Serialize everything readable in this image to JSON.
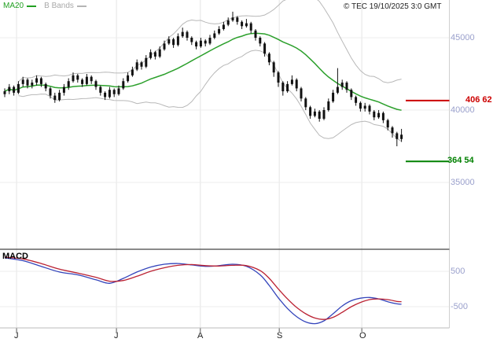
{
  "header": {
    "legend": [
      {
        "label": "MA20",
        "color": "#22a022"
      },
      {
        "label": "B Bands",
        "color": "#a9a9a9"
      }
    ],
    "copyright": "© TEC 19/10/2025 3:0 GMT"
  },
  "price_axis": [
    {
      "text": "45000",
      "value": 45000
    },
    {
      "text": "40000",
      "value": 40000
    },
    {
      "text": "35000",
      "value": 35000
    }
  ],
  "macd_axis": [
    {
      "text": "500",
      "value": 500
    },
    {
      "text": "-500",
      "value": -500
    }
  ],
  "x_axis": [
    {
      "label": "J"
    },
    {
      "label": "J"
    },
    {
      "label": "A"
    },
    {
      "label": "S"
    },
    {
      "label": "O"
    }
  ],
  "levels": [
    {
      "label": "406 62",
      "value": 40662,
      "color": "#cc0000"
    },
    {
      "label": "364 54",
      "value": 36454,
      "color": "#008000"
    }
  ],
  "macd_label": "MACD",
  "chart_data": {
    "type": "candlestick",
    "title": "",
    "panels": [
      "price",
      "macd"
    ],
    "price_ylim": [
      34800,
      47400
    ],
    "macd_ylim": [
      -1100,
      1100
    ],
    "price_ticks": [
      45000,
      40000,
      35000
    ],
    "macd_ticks": [
      500,
      -500
    ],
    "grid": true,
    "month_index": [
      2.6,
      24.5,
      42.9,
      60.2,
      78.3
    ],
    "ma_window": 20,
    "bollinger_mult": 2,
    "overlays": [
      "MA20",
      "Bollinger Bands",
      "level 40662 resistance",
      "level 36454 support"
    ],
    "ohlc": [
      [
        41100,
        41500,
        40900,
        41300
      ],
      [
        41300,
        41800,
        41100,
        41600
      ],
      [
        41600,
        41700,
        41000,
        41200
      ],
      [
        41200,
        42000,
        41100,
        41800
      ],
      [
        41800,
        42300,
        41600,
        42100
      ],
      [
        42100,
        42200,
        41500,
        41700
      ],
      [
        41700,
        42100,
        41500,
        41900
      ],
      [
        41900,
        42400,
        41700,
        42200
      ],
      [
        42200,
        42300,
        41600,
        41800
      ],
      [
        41800,
        41900,
        41300,
        41500
      ],
      [
        41500,
        41600,
        40800,
        41000
      ],
      [
        41000,
        41200,
        40500,
        40700
      ],
      [
        40700,
        41400,
        40600,
        41200
      ],
      [
        41200,
        41800,
        41000,
        41600
      ],
      [
        41600,
        42200,
        41400,
        42000
      ],
      [
        42000,
        42600,
        41900,
        42400
      ],
      [
        42400,
        42500,
        41900,
        42100
      ],
      [
        42100,
        42200,
        41600,
        41800
      ],
      [
        41800,
        42500,
        41700,
        42300
      ],
      [
        42300,
        42400,
        41800,
        42000
      ],
      [
        42000,
        42100,
        41400,
        41600
      ],
      [
        41600,
        41700,
        41000,
        41200
      ],
      [
        41200,
        41300,
        40700,
        40900
      ],
      [
        40900,
        41600,
        40800,
        41400
      ],
      [
        41400,
        41500,
        40900,
        41100
      ],
      [
        41100,
        41700,
        41000,
        41500
      ],
      [
        41500,
        42200,
        41400,
        42000
      ],
      [
        42000,
        42600,
        41900,
        42400
      ],
      [
        42400,
        43000,
        42300,
        42800
      ],
      [
        42800,
        43500,
        42700,
        43300
      ],
      [
        43300,
        43400,
        42800,
        43000
      ],
      [
        43000,
        43800,
        42900,
        43600
      ],
      [
        43600,
        44200,
        43500,
        44000
      ],
      [
        44000,
        44100,
        43500,
        43700
      ],
      [
        43700,
        44400,
        43600,
        44200
      ],
      [
        44200,
        44800,
        44100,
        44600
      ],
      [
        44600,
        45100,
        44500,
        44900
      ],
      [
        44900,
        45000,
        44300,
        44500
      ],
      [
        44500,
        45300,
        44400,
        45100
      ],
      [
        45100,
        45700,
        45000,
        45400
      ],
      [
        45400,
        45500,
        44800,
        45000
      ],
      [
        45000,
        45100,
        44500,
        44700
      ],
      [
        44700,
        44800,
        44200,
        44400
      ],
      [
        44400,
        45000,
        44300,
        44800
      ],
      [
        44800,
        44900,
        44400,
        44600
      ],
      [
        44600,
        45200,
        44500,
        45000
      ],
      [
        45000,
        45500,
        44900,
        45300
      ],
      [
        45300,
        45800,
        45200,
        45600
      ],
      [
        45600,
        46100,
        45500,
        45900
      ],
      [
        45900,
        46400,
        45800,
        46200
      ],
      [
        46200,
        46800,
        46100,
        46400
      ],
      [
        46400,
        46500,
        45900,
        46100
      ],
      [
        46100,
        46200,
        45600,
        45800
      ],
      [
        45800,
        46300,
        45700,
        46000
      ],
      [
        46000,
        46100,
        45300,
        45500
      ],
      [
        45500,
        45600,
        44800,
        45000
      ],
      [
        45000,
        45100,
        44400,
        44600
      ],
      [
        44600,
        44700,
        43700,
        43900
      ],
      [
        43900,
        44000,
        43100,
        43300
      ],
      [
        43300,
        43400,
        42300,
        42600
      ],
      [
        42600,
        42700,
        41600,
        41900
      ],
      [
        41900,
        42000,
        41000,
        41300
      ],
      [
        41300,
        42000,
        41200,
        41800
      ],
      [
        41800,
        42400,
        41700,
        42100
      ],
      [
        42100,
        42200,
        41300,
        41500
      ],
      [
        41500,
        41600,
        40600,
        40800
      ],
      [
        40800,
        40900,
        40000,
        40200
      ],
      [
        40200,
        40300,
        39400,
        39600
      ],
      [
        39600,
        40100,
        39500,
        39900
      ],
      [
        39900,
        40000,
        39200,
        39400
      ],
      [
        39400,
        40200,
        39300,
        40000
      ],
      [
        40000,
        40800,
        39900,
        40600
      ],
      [
        40600,
        41400,
        40500,
        41200
      ],
      [
        41200,
        42900,
        41100,
        41600
      ],
      [
        41600,
        42100,
        41400,
        41900
      ],
      [
        41900,
        42000,
        41200,
        41400
      ],
      [
        41400,
        41500,
        40700,
        40900
      ],
      [
        40900,
        41000,
        40300,
        40500
      ],
      [
        40500,
        40600,
        39900,
        40100
      ],
      [
        40100,
        40500,
        39900,
        40300
      ],
      [
        40300,
        40400,
        39700,
        39900
      ],
      [
        39900,
        40000,
        39300,
        39500
      ],
      [
        39500,
        40000,
        39400,
        39800
      ],
      [
        39800,
        39900,
        39100,
        39300
      ],
      [
        39300,
        39400,
        38600,
        38800
      ],
      [
        38800,
        38900,
        38100,
        38400
      ],
      [
        38400,
        38500,
        37500,
        38000
      ],
      [
        38000,
        38700,
        37800,
        38300
      ]
    ],
    "macd_series": {
      "name": "MACD",
      "color": "#3344bb",
      "points": [
        [
          0,
          880
        ],
        [
          4,
          800
        ],
        [
          8,
          640
        ],
        [
          12,
          480
        ],
        [
          16,
          400
        ],
        [
          20,
          260
        ],
        [
          23,
          160
        ],
        [
          26,
          300
        ],
        [
          29,
          480
        ],
        [
          32,
          620
        ],
        [
          35,
          700
        ],
        [
          38,
          720
        ],
        [
          41,
          680
        ],
        [
          44,
          640
        ],
        [
          47,
          660
        ],
        [
          50,
          700
        ],
        [
          53,
          640
        ],
        [
          56,
          400
        ],
        [
          58,
          100
        ],
        [
          60,
          -250
        ],
        [
          62,
          -550
        ],
        [
          64,
          -780
        ],
        [
          66,
          -930
        ],
        [
          68,
          -980
        ],
        [
          70,
          -900
        ],
        [
          72,
          -700
        ],
        [
          74,
          -480
        ],
        [
          76,
          -330
        ],
        [
          78,
          -260
        ],
        [
          80,
          -240
        ],
        [
          82,
          -280
        ],
        [
          84,
          -360
        ],
        [
          86,
          -420
        ],
        [
          87,
          -430
        ]
      ]
    },
    "signal_series": {
      "name": "Signal",
      "color": "#bb2233",
      "points": [
        [
          0,
          900
        ],
        [
          4,
          850
        ],
        [
          8,
          720
        ],
        [
          12,
          560
        ],
        [
          16,
          450
        ],
        [
          20,
          330
        ],
        [
          23,
          220
        ],
        [
          26,
          240
        ],
        [
          29,
          360
        ],
        [
          32,
          500
        ],
        [
          35,
          600
        ],
        [
          38,
          670
        ],
        [
          41,
          690
        ],
        [
          44,
          660
        ],
        [
          47,
          650
        ],
        [
          50,
          670
        ],
        [
          53,
          660
        ],
        [
          56,
          520
        ],
        [
          58,
          300
        ],
        [
          60,
          0
        ],
        [
          62,
          -280
        ],
        [
          64,
          -520
        ],
        [
          66,
          -700
        ],
        [
          68,
          -820
        ],
        [
          70,
          -860
        ],
        [
          72,
          -800
        ],
        [
          74,
          -660
        ],
        [
          76,
          -500
        ],
        [
          78,
          -380
        ],
        [
          80,
          -300
        ],
        [
          82,
          -280
        ],
        [
          84,
          -300
        ],
        [
          86,
          -350
        ],
        [
          87,
          -360
        ]
      ]
    }
  }
}
